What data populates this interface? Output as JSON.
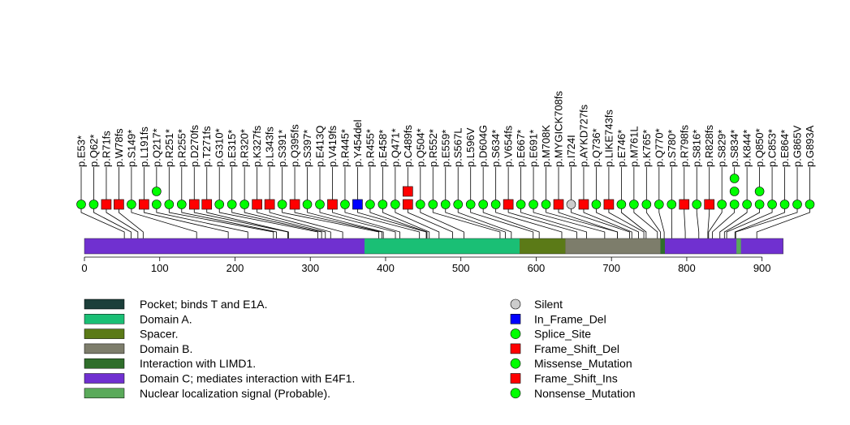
{
  "chart_data": {
    "type": "lollipop",
    "xlim": [
      0,
      930
    ],
    "x_ticks": [
      0,
      100,
      200,
      300,
      400,
      500,
      600,
      700,
      800,
      900
    ],
    "protein_length": 928,
    "domains": [
      {
        "name": "Pocket; binds T and E1A.",
        "start": 372,
        "end": 928,
        "color": "#1c3f3a",
        "draw": false
      },
      {
        "name": "Domain A.",
        "start": 372,
        "end": 578,
        "color": "#1abf75"
      },
      {
        "name": "Spacer.",
        "start": 578,
        "end": 639,
        "color": "#5b7a17"
      },
      {
        "name": "Domain B.",
        "start": 639,
        "end": 765,
        "color": "#7d7d6b"
      },
      {
        "name": "Interaction with LIMD1.",
        "start": 765,
        "end": 771,
        "color": "#2f6e2b"
      },
      {
        "name": "Domain C; mediates interaction with E4F1.",
        "start": 771,
        "end": 928,
        "color": "#7030d0"
      },
      {
        "name": "Nuclear localization signal (Probable).",
        "start": 866,
        "end": 872,
        "color": "#5aaa5a"
      }
    ],
    "outside_domain_color": "#7030d0",
    "mutations": [
      {
        "label": "p.E53*",
        "pos": 53,
        "count": 1,
        "type": "Nonsense_Mutation"
      },
      {
        "label": "p.Q62*",
        "pos": 62,
        "count": 1,
        "type": "Nonsense_Mutation"
      },
      {
        "label": "p.R71fs",
        "pos": 71,
        "count": 1,
        "type": "Frame_Shift_Del"
      },
      {
        "label": "p.W78fs",
        "pos": 78,
        "count": 1,
        "type": "Frame_Shift_Del"
      },
      {
        "label": "p.S149*",
        "pos": 149,
        "count": 1,
        "type": "Nonsense_Mutation"
      },
      {
        "label": "p.L191fs",
        "pos": 191,
        "count": 1,
        "type": "Frame_Shift_Del"
      },
      {
        "label": "p.Q217*",
        "pos": 217,
        "count": 2,
        "type": "Nonsense_Mutation"
      },
      {
        "label": "p.R251*",
        "pos": 251,
        "count": 1,
        "type": "Nonsense_Mutation"
      },
      {
        "label": "p.R255*",
        "pos": 255,
        "count": 1,
        "type": "Nonsense_Mutation"
      },
      {
        "label": "p.D270fs",
        "pos": 270,
        "count": 1,
        "type": "Frame_Shift_Del"
      },
      {
        "label": "p.T271fs",
        "pos": 271,
        "count": 1,
        "type": "Frame_Shift_Del"
      },
      {
        "label": "p.G310*",
        "pos": 310,
        "count": 1,
        "type": "Nonsense_Mutation"
      },
      {
        "label": "p.E315*",
        "pos": 315,
        "count": 1,
        "type": "Nonsense_Mutation"
      },
      {
        "label": "p.R320*",
        "pos": 320,
        "count": 1,
        "type": "Nonsense_Mutation"
      },
      {
        "label": "p.K327fs",
        "pos": 327,
        "count": 1,
        "type": "Frame_Shift_Del"
      },
      {
        "label": "p.L343fs",
        "pos": 343,
        "count": 1,
        "type": "Frame_Shift_Del"
      },
      {
        "label": "p.S391*",
        "pos": 391,
        "count": 1,
        "type": "Nonsense_Mutation"
      },
      {
        "label": "p.Q395fs",
        "pos": 395,
        "count": 1,
        "type": "Frame_Shift_Del"
      },
      {
        "label": "p.S397*",
        "pos": 397,
        "count": 1,
        "type": "Nonsense_Mutation"
      },
      {
        "label": "p.E413Q",
        "pos": 413,
        "count": 1,
        "type": "Missense_Mutation"
      },
      {
        "label": "p.V419fs",
        "pos": 419,
        "count": 1,
        "type": "Frame_Shift_Del"
      },
      {
        "label": "p.R445*",
        "pos": 445,
        "count": 1,
        "type": "Nonsense_Mutation"
      },
      {
        "label": "p.Y454del",
        "pos": 454,
        "count": 1,
        "type": "In_Frame_Del"
      },
      {
        "label": "p.R455*",
        "pos": 455,
        "count": 1,
        "type": "Nonsense_Mutation"
      },
      {
        "label": "p.E458*",
        "pos": 458,
        "count": 1,
        "type": "Nonsense_Mutation"
      },
      {
        "label": "p.Q471*",
        "pos": 471,
        "count": 1,
        "type": "Nonsense_Mutation"
      },
      {
        "label": "p.C489fs",
        "pos": 489,
        "count": 2,
        "type": "Frame_Shift_Del"
      },
      {
        "label": "p.Q504*",
        "pos": 504,
        "count": 1,
        "type": "Nonsense_Mutation"
      },
      {
        "label": "p.R552*",
        "pos": 552,
        "count": 1,
        "type": "Nonsense_Mutation"
      },
      {
        "label": "p.E559*",
        "pos": 559,
        "count": 1,
        "type": "Nonsense_Mutation"
      },
      {
        "label": "p.S567L",
        "pos": 567,
        "count": 1,
        "type": "Missense_Mutation"
      },
      {
        "label": "p.L596V",
        "pos": 596,
        "count": 1,
        "type": "Missense_Mutation"
      },
      {
        "label": "p.D604G",
        "pos": 604,
        "count": 1,
        "type": "Missense_Mutation"
      },
      {
        "label": "p.S634*",
        "pos": 634,
        "count": 1,
        "type": "Nonsense_Mutation"
      },
      {
        "label": "p.V654fs",
        "pos": 654,
        "count": 1,
        "type": "Frame_Shift_Del"
      },
      {
        "label": "p.E667*",
        "pos": 667,
        "count": 1,
        "type": "Nonsense_Mutation"
      },
      {
        "label": "p.E691*",
        "pos": 691,
        "count": 1,
        "type": "Nonsense_Mutation"
      },
      {
        "label": "p.M708K",
        "pos": 708,
        "count": 1,
        "type": "Missense_Mutation"
      },
      {
        "label": "p.MYGICK708fs",
        "pos": 708,
        "count": 1,
        "type": "Frame_Shift_Del"
      },
      {
        "label": "p.I724I",
        "pos": 724,
        "count": 1,
        "type": "Silent"
      },
      {
        "label": "p.AYKD727fs",
        "pos": 727,
        "count": 1,
        "type": "Frame_Shift_Del"
      },
      {
        "label": "p.Q736*",
        "pos": 736,
        "count": 1,
        "type": "Nonsense_Mutation"
      },
      {
        "label": "p.LIKE743fs",
        "pos": 743,
        "count": 1,
        "type": "Frame_Shift_Del"
      },
      {
        "label": "p.E746*",
        "pos": 746,
        "count": 1,
        "type": "Nonsense_Mutation"
      },
      {
        "label": "p.M761L",
        "pos": 761,
        "count": 1,
        "type": "Missense_Mutation"
      },
      {
        "label": "p.K765*",
        "pos": 765,
        "count": 1,
        "type": "Nonsense_Mutation"
      },
      {
        "label": "p.Q770*",
        "pos": 770,
        "count": 1,
        "type": "Nonsense_Mutation"
      },
      {
        "label": "p.S780*",
        "pos": 780,
        "count": 1,
        "type": "Nonsense_Mutation"
      },
      {
        "label": "p.R798fs",
        "pos": 798,
        "count": 1,
        "type": "Frame_Shift_Del"
      },
      {
        "label": "p.S816*",
        "pos": 816,
        "count": 1,
        "type": "Nonsense_Mutation"
      },
      {
        "label": "p.R828fs",
        "pos": 828,
        "count": 1,
        "type": "Frame_Shift_Del"
      },
      {
        "label": "p.S829*",
        "pos": 829,
        "count": 1,
        "type": "Nonsense_Mutation"
      },
      {
        "label": "p.S834*",
        "pos": 834,
        "count": 3,
        "type": "Nonsense_Mutation"
      },
      {
        "label": "p.K844*",
        "pos": 844,
        "count": 1,
        "type": "Nonsense_Mutation"
      },
      {
        "label": "p.Q850*",
        "pos": 850,
        "count": 2,
        "type": "Nonsense_Mutation"
      },
      {
        "label": "p.C853*",
        "pos": 853,
        "count": 1,
        "type": "Nonsense_Mutation"
      },
      {
        "label": "p.E864*",
        "pos": 864,
        "count": 1,
        "type": "Nonsense_Mutation"
      },
      {
        "label": "p.G865V",
        "pos": 865,
        "count": 1,
        "type": "Missense_Mutation"
      },
      {
        "label": "p.G893A",
        "pos": 893,
        "count": 1,
        "type": "Missense_Mutation"
      }
    ],
    "mutation_legend": [
      {
        "label": "Silent",
        "shape": "circle",
        "color": "#cccccc"
      },
      {
        "label": "In_Frame_Del",
        "shape": "square",
        "color": "#0000ff"
      },
      {
        "label": "Splice_Site",
        "shape": "circle",
        "color": "#00ff00"
      },
      {
        "label": "Frame_Shift_Del",
        "shape": "square",
        "color": "#ff0000"
      },
      {
        "label": "Missense_Mutation",
        "shape": "circle",
        "color": "#00ff00"
      },
      {
        "label": "Frame_Shift_Ins",
        "shape": "square",
        "color": "#ff0000"
      },
      {
        "label": "Nonsense_Mutation",
        "shape": "circle",
        "color": "#00ff00"
      }
    ],
    "type_styles": {
      "Silent": {
        "shape": "circle",
        "color": "#cccccc"
      },
      "In_Frame_Del": {
        "shape": "square",
        "color": "#0000ff"
      },
      "Splice_Site": {
        "shape": "circle",
        "color": "#00ff00"
      },
      "Frame_Shift_Del": {
        "shape": "square",
        "color": "#ff0000"
      },
      "Missense_Mutation": {
        "shape": "circle",
        "color": "#00ff00"
      },
      "Frame_Shift_Ins": {
        "shape": "square",
        "color": "#ff0000"
      },
      "Nonsense_Mutation": {
        "shape": "circle",
        "color": "#00ff00"
      }
    }
  }
}
